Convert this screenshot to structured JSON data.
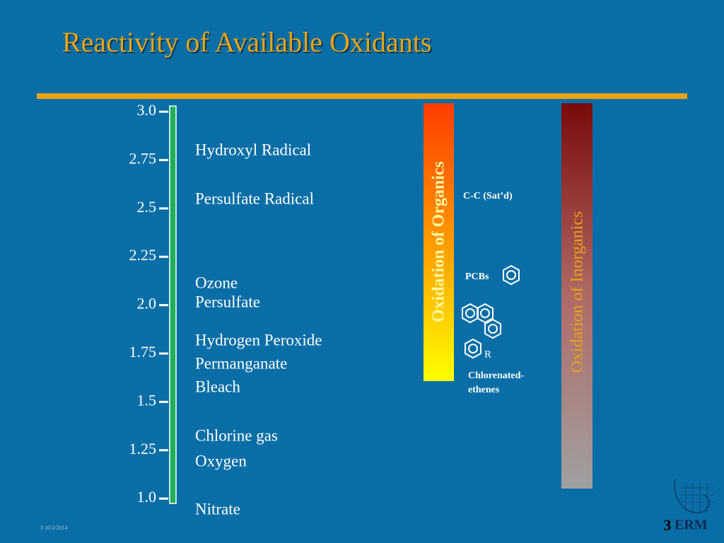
{
  "title": "Reactivity of Available Oxidants",
  "scale": {
    "labels": [
      "3.0",
      "2.75",
      "2.5",
      "2.25",
      "2.0",
      "1.75",
      "1.5",
      "1.25",
      "1.0"
    ]
  },
  "oxidants": [
    "Hydroxyl Radical",
    "Persulfate Radical",
    "Ozone",
    "Persulfate",
    "Hydrogen Peroxide",
    "Permanganate",
    "Bleach",
    "Chlorine gas",
    "Oxygen",
    "Nitrate"
  ],
  "organics": {
    "label": "Oxidation of Organics",
    "items": [
      "C-C (Sat’d)",
      "PCBs",
      "R",
      "Chlorenated-",
      "ethenes"
    ]
  },
  "inorganics": {
    "label": "Oxidation of Inorganics"
  },
  "footer": {
    "page": "3",
    "logo": "ERM",
    "date": "3 10/2/2014"
  }
}
